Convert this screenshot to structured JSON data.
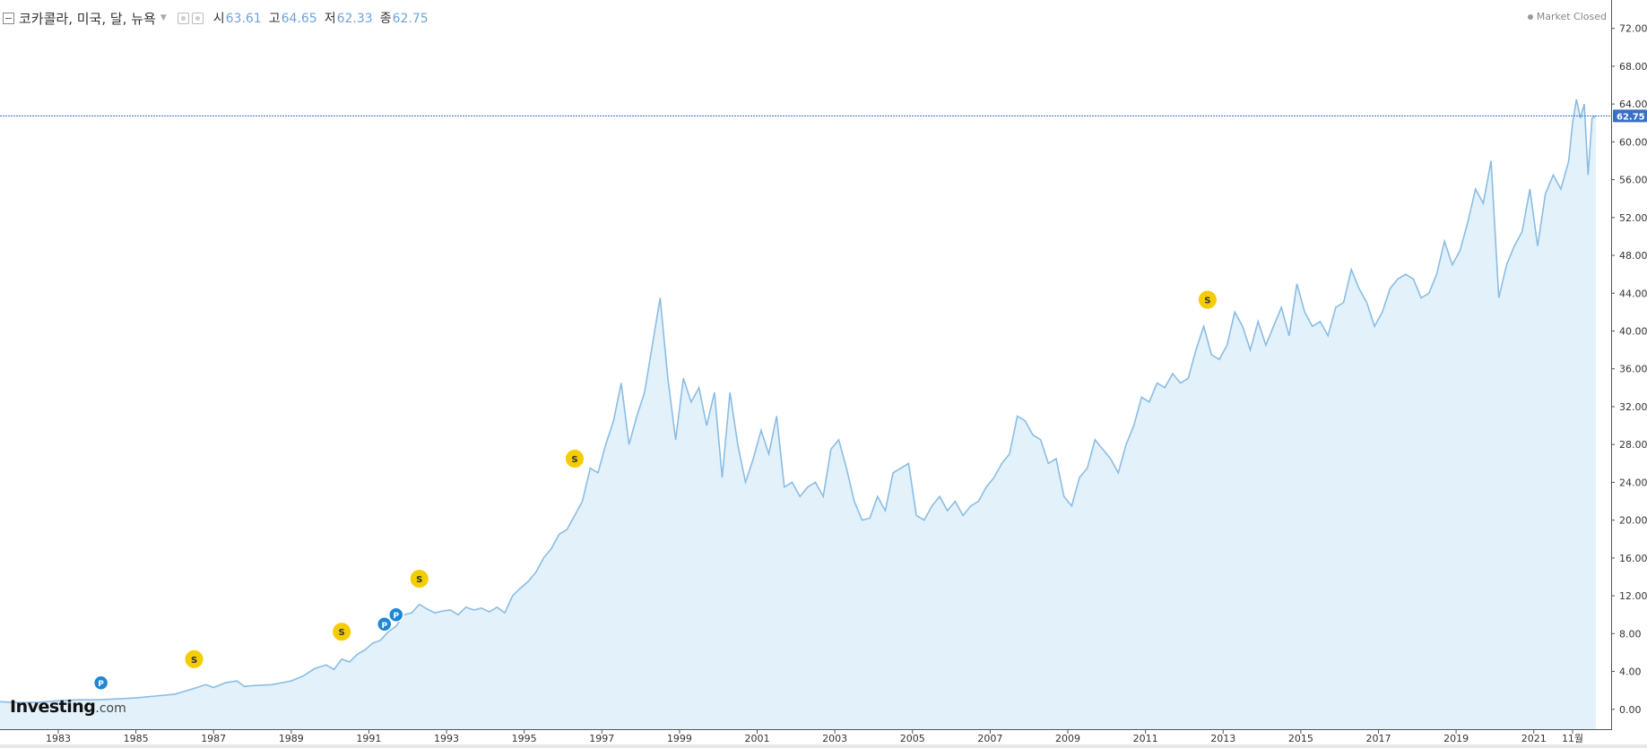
{
  "header": {
    "title": "코카콜라, 미국, 달, 뉴욕",
    "open_label": "시",
    "open_value": "63.61",
    "high_label": "고",
    "high_value": "64.65",
    "low_label": "저",
    "low_value": "62.33",
    "close_label": "종",
    "close_value": "62.75"
  },
  "status": {
    "text": "Market Closed"
  },
  "logo": {
    "brand": "Investing",
    "suffix": ".com"
  },
  "colors": {
    "line": "#8bbde3",
    "area": "#e2f1fa",
    "price_tag": "#3a6fc4",
    "split_marker": "#f4cc00",
    "p_marker": "#1e88d6"
  },
  "chart_data": {
    "type": "area",
    "ylim": [
      -2.2,
      75
    ],
    "xlim": [
      1981.5,
      2022.6
    ],
    "y_ticks": [
      "72.00",
      "68.00",
      "64.00",
      "60.00",
      "56.00",
      "52.00",
      "48.00",
      "44.00",
      "40.00",
      "36.00",
      "32.00",
      "28.00",
      "24.00",
      "20.00",
      "16.00",
      "12.00",
      "8.00",
      "4.00",
      "0.00"
    ],
    "x_ticks": [
      {
        "x": 1983,
        "label": "1983"
      },
      {
        "x": 1985,
        "label": "1985"
      },
      {
        "x": 1987,
        "label": "1987"
      },
      {
        "x": 1989,
        "label": "1989"
      },
      {
        "x": 1991,
        "label": "1991"
      },
      {
        "x": 1993,
        "label": "1993"
      },
      {
        "x": 1995,
        "label": "1995"
      },
      {
        "x": 1997,
        "label": "1997"
      },
      {
        "x": 1999,
        "label": "1999"
      },
      {
        "x": 2001,
        "label": "2001"
      },
      {
        "x": 2003,
        "label": "2003"
      },
      {
        "x": 2005,
        "label": "2005"
      },
      {
        "x": 2007,
        "label": "2007"
      },
      {
        "x": 2009,
        "label": "2009"
      },
      {
        "x": 2011,
        "label": "2011"
      },
      {
        "x": 2013,
        "label": "2013"
      },
      {
        "x": 2015,
        "label": "2015"
      },
      {
        "x": 2017,
        "label": "2017"
      },
      {
        "x": 2019,
        "label": "2019"
      },
      {
        "x": 2021,
        "label": "2021"
      },
      {
        "x": 2022.0,
        "label": "11월"
      }
    ],
    "last_price": 62.75,
    "last_price_label": "62.75",
    "series": [
      {
        "points": [
          [
            1981.5,
            0.8
          ],
          [
            1982.0,
            0.7
          ],
          [
            1982.5,
            0.75
          ],
          [
            1983.0,
            0.9
          ],
          [
            1983.5,
            1.0
          ],
          [
            1984.0,
            1.0
          ],
          [
            1984.5,
            1.1
          ],
          [
            1985.0,
            1.2
          ],
          [
            1985.5,
            1.4
          ],
          [
            1986.0,
            1.6
          ],
          [
            1986.5,
            2.2
          ],
          [
            1986.8,
            2.6
          ],
          [
            1987.0,
            2.3
          ],
          [
            1987.3,
            2.8
          ],
          [
            1987.6,
            3.0
          ],
          [
            1987.8,
            2.4
          ],
          [
            1988.0,
            2.5
          ],
          [
            1988.5,
            2.6
          ],
          [
            1989.0,
            3.0
          ],
          [
            1989.3,
            3.5
          ],
          [
            1989.6,
            4.3
          ],
          [
            1989.9,
            4.7
          ],
          [
            1990.1,
            4.2
          ],
          [
            1990.3,
            5.3
          ],
          [
            1990.5,
            5.0
          ],
          [
            1990.7,
            5.8
          ],
          [
            1990.9,
            6.3
          ],
          [
            1991.1,
            7.0
          ],
          [
            1991.3,
            7.3
          ],
          [
            1991.5,
            8.2
          ],
          [
            1991.7,
            8.8
          ],
          [
            1991.9,
            10.0
          ],
          [
            1992.1,
            10.2
          ],
          [
            1992.3,
            11.1
          ],
          [
            1992.5,
            10.6
          ],
          [
            1992.7,
            10.2
          ],
          [
            1992.9,
            10.4
          ],
          [
            1993.1,
            10.5
          ],
          [
            1993.3,
            10.0
          ],
          [
            1993.5,
            10.8
          ],
          [
            1993.7,
            10.5
          ],
          [
            1993.9,
            10.7
          ],
          [
            1994.1,
            10.3
          ],
          [
            1994.3,
            10.8
          ],
          [
            1994.5,
            10.2
          ],
          [
            1994.7,
            12.0
          ],
          [
            1994.9,
            12.8
          ],
          [
            1995.1,
            13.5
          ],
          [
            1995.3,
            14.5
          ],
          [
            1995.5,
            16.0
          ],
          [
            1995.7,
            17.0
          ],
          [
            1995.9,
            18.5
          ],
          [
            1996.1,
            19.0
          ],
          [
            1996.3,
            20.5
          ],
          [
            1996.5,
            22.0
          ],
          [
            1996.7,
            25.5
          ],
          [
            1996.9,
            25.0
          ],
          [
            1997.1,
            28.0
          ],
          [
            1997.3,
            30.5
          ],
          [
            1997.5,
            34.5
          ],
          [
            1997.7,
            28.0
          ],
          [
            1997.9,
            31.0
          ],
          [
            1998.1,
            33.5
          ],
          [
            1998.3,
            38.5
          ],
          [
            1998.5,
            43.5
          ],
          [
            1998.7,
            35.0
          ],
          [
            1998.9,
            28.5
          ],
          [
            1999.1,
            35.0
          ],
          [
            1999.3,
            32.5
          ],
          [
            1999.5,
            34.0
          ],
          [
            1999.7,
            30.0
          ],
          [
            1999.9,
            33.5
          ],
          [
            2000.1,
            24.5
          ],
          [
            2000.3,
            33.5
          ],
          [
            2000.5,
            28.0
          ],
          [
            2000.7,
            24.0
          ],
          [
            2000.9,
            26.5
          ],
          [
            2001.1,
            29.5
          ],
          [
            2001.3,
            27.0
          ],
          [
            2001.5,
            31.0
          ],
          [
            2001.7,
            23.5
          ],
          [
            2001.9,
            24.0
          ],
          [
            2002.1,
            22.5
          ],
          [
            2002.3,
            23.5
          ],
          [
            2002.5,
            24.0
          ],
          [
            2002.7,
            22.5
          ],
          [
            2002.9,
            27.5
          ],
          [
            2003.1,
            28.5
          ],
          [
            2003.3,
            25.5
          ],
          [
            2003.5,
            22.0
          ],
          [
            2003.7,
            20.0
          ],
          [
            2003.9,
            20.2
          ],
          [
            2004.1,
            22.5
          ],
          [
            2004.3,
            21.0
          ],
          [
            2004.5,
            25.0
          ],
          [
            2004.7,
            25.5
          ],
          [
            2004.9,
            26.0
          ],
          [
            2005.1,
            20.5
          ],
          [
            2005.3,
            20.0
          ],
          [
            2005.5,
            21.5
          ],
          [
            2005.7,
            22.5
          ],
          [
            2005.9,
            21.0
          ],
          [
            2006.1,
            22.0
          ],
          [
            2006.3,
            20.5
          ],
          [
            2006.5,
            21.5
          ],
          [
            2006.7,
            22.0
          ],
          [
            2006.9,
            23.5
          ],
          [
            2007.1,
            24.5
          ],
          [
            2007.3,
            26.0
          ],
          [
            2007.5,
            27.0
          ],
          [
            2007.7,
            31.0
          ],
          [
            2007.9,
            30.5
          ],
          [
            2008.1,
            29.0
          ],
          [
            2008.3,
            28.5
          ],
          [
            2008.5,
            26.0
          ],
          [
            2008.7,
            26.5
          ],
          [
            2008.9,
            22.5
          ],
          [
            2009.1,
            21.5
          ],
          [
            2009.3,
            24.5
          ],
          [
            2009.5,
            25.5
          ],
          [
            2009.7,
            28.5
          ],
          [
            2009.9,
            27.5
          ],
          [
            2010.1,
            26.5
          ],
          [
            2010.3,
            25.0
          ],
          [
            2010.5,
            28.0
          ],
          [
            2010.7,
            30.0
          ],
          [
            2010.9,
            33.0
          ],
          [
            2011.1,
            32.5
          ],
          [
            2011.3,
            34.5
          ],
          [
            2011.5,
            34.0
          ],
          [
            2011.7,
            35.5
          ],
          [
            2011.9,
            34.5
          ],
          [
            2012.1,
            35.0
          ],
          [
            2012.3,
            38.0
          ],
          [
            2012.5,
            40.5
          ],
          [
            2012.7,
            37.5
          ],
          [
            2012.9,
            37.0
          ],
          [
            2013.1,
            38.5
          ],
          [
            2013.3,
            42.0
          ],
          [
            2013.5,
            40.5
          ],
          [
            2013.7,
            38.0
          ],
          [
            2013.9,
            41.0
          ],
          [
            2014.1,
            38.5
          ],
          [
            2014.3,
            40.5
          ],
          [
            2014.5,
            42.5
          ],
          [
            2014.7,
            39.5
          ],
          [
            2014.9,
            45.0
          ],
          [
            2015.1,
            42.0
          ],
          [
            2015.3,
            40.5
          ],
          [
            2015.5,
            41.0
          ],
          [
            2015.7,
            39.5
          ],
          [
            2015.9,
            42.5
          ],
          [
            2016.1,
            43.0
          ],
          [
            2016.3,
            46.5
          ],
          [
            2016.5,
            44.5
          ],
          [
            2016.7,
            43.0
          ],
          [
            2016.9,
            40.5
          ],
          [
            2017.1,
            42.0
          ],
          [
            2017.3,
            44.5
          ],
          [
            2017.5,
            45.5
          ],
          [
            2017.7,
            46.0
          ],
          [
            2017.9,
            45.5
          ],
          [
            2018.1,
            43.5
          ],
          [
            2018.3,
            44.0
          ],
          [
            2018.5,
            46.0
          ],
          [
            2018.7,
            49.5
          ],
          [
            2018.9,
            47.0
          ],
          [
            2019.1,
            48.5
          ],
          [
            2019.3,
            51.5
          ],
          [
            2019.5,
            55.0
          ],
          [
            2019.7,
            53.5
          ],
          [
            2019.9,
            58.0
          ],
          [
            2020.1,
            43.5
          ],
          [
            2020.3,
            47.0
          ],
          [
            2020.5,
            49.0
          ],
          [
            2020.7,
            50.5
          ],
          [
            2020.9,
            55.0
          ],
          [
            2021.1,
            49.0
          ],
          [
            2021.3,
            54.5
          ],
          [
            2021.5,
            56.5
          ],
          [
            2021.7,
            55.0
          ],
          [
            2021.9,
            58.0
          ],
          [
            2022.0,
            62.0
          ],
          [
            2022.1,
            64.5
          ],
          [
            2022.2,
            62.5
          ],
          [
            2022.3,
            64.0
          ],
          [
            2022.4,
            56.5
          ],
          [
            2022.5,
            62.5
          ],
          [
            2022.6,
            62.75
          ]
        ]
      }
    ],
    "markers": [
      {
        "x": 1984.1,
        "y": 2.8,
        "type": "P",
        "label": "P"
      },
      {
        "x": 1986.5,
        "y": 5.3,
        "type": "S",
        "label": "S"
      },
      {
        "x": 1990.3,
        "y": 8.2,
        "type": "S",
        "label": "S"
      },
      {
        "x": 1991.4,
        "y": 9.0,
        "type": "P",
        "label": "P"
      },
      {
        "x": 1991.7,
        "y": 10.0,
        "type": "P",
        "label": "P"
      },
      {
        "x": 1992.3,
        "y": 13.8,
        "type": "S",
        "label": "S"
      },
      {
        "x": 1996.3,
        "y": 26.5,
        "type": "S",
        "label": "S"
      },
      {
        "x": 2012.6,
        "y": 43.3,
        "type": "S",
        "label": "S"
      }
    ]
  }
}
